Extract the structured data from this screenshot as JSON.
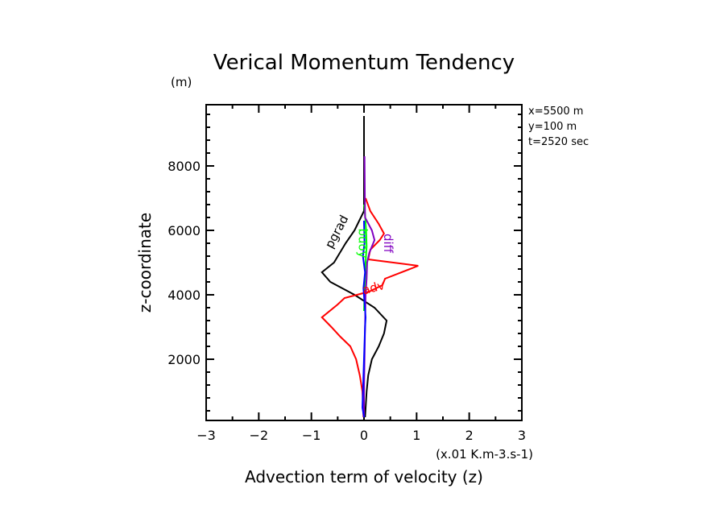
{
  "chart_data": {
    "type": "line",
    "title": "Verical Momentum Tendency",
    "ylabel": "z-coordinate",
    "yunit": "(m)",
    "xlabel": "Advection term of velocity (z)",
    "xunit": "(x.01 K.m-3.s-1)",
    "xlim": [
      -3,
      3
    ],
    "ylim": [
      100,
      9900
    ],
    "xticks": [
      -3,
      -2,
      -1,
      0,
      1,
      2,
      3
    ],
    "yticks": [
      2000,
      4000,
      6000,
      8000
    ],
    "info": [
      "x=5500 m",
      "y=100 m",
      "t=2520 sec"
    ],
    "series": [
      {
        "name": "pgrad",
        "color": "#000000",
        "points": [
          [
            0,
            9550
          ],
          [
            0,
            7000
          ],
          [
            0,
            6600
          ],
          [
            -0.18,
            6000
          ],
          [
            -0.35,
            5600
          ],
          [
            -0.57,
            5000
          ],
          [
            -0.8,
            4700
          ],
          [
            -0.64,
            4400
          ],
          [
            -0.18,
            4000
          ],
          [
            0.2,
            3600
          ],
          [
            0.43,
            3200
          ],
          [
            0.38,
            2800
          ],
          [
            0.28,
            2400
          ],
          [
            0.15,
            2000
          ],
          [
            0.08,
            1500
          ],
          [
            0.05,
            1000
          ],
          [
            0.02,
            200
          ]
        ]
      },
      {
        "name": "adv",
        "color": "#ff0000",
        "points": [
          [
            0.03,
            7000
          ],
          [
            0.12,
            6600
          ],
          [
            0.28,
            6200
          ],
          [
            0.38,
            5900
          ],
          [
            0.3,
            5700
          ],
          [
            0.12,
            5400
          ],
          [
            0.08,
            5100
          ],
          [
            1.03,
            4900
          ],
          [
            0.4,
            4500
          ],
          [
            0.35,
            4300
          ],
          [
            0.1,
            4100
          ],
          [
            -0.37,
            3900
          ],
          [
            -0.5,
            3700
          ],
          [
            -0.8,
            3300
          ],
          [
            -0.62,
            3000
          ],
          [
            -0.45,
            2700
          ],
          [
            -0.26,
            2400
          ],
          [
            -0.15,
            2000
          ],
          [
            -0.08,
            1500
          ],
          [
            -0.03,
            1000
          ],
          [
            -0.01,
            200
          ]
        ]
      },
      {
        "name": "buoy",
        "color": "#00ff00",
        "points": [
          [
            0,
            6800
          ],
          [
            0.02,
            6500
          ],
          [
            0.04,
            6000
          ],
          [
            0.05,
            5500
          ],
          [
            0.03,
            5000
          ],
          [
            0.02,
            4500
          ],
          [
            0.01,
            4000
          ],
          [
            0,
            3500
          ]
        ]
      },
      {
        "name": "diff",
        "color": "#8000c0",
        "points": [
          [
            0.01,
            8300
          ],
          [
            0.02,
            6400
          ],
          [
            0.15,
            6000
          ],
          [
            0.2,
            5700
          ],
          [
            0.1,
            5300
          ],
          [
            0.06,
            5000
          ],
          [
            0.05,
            4500
          ],
          [
            0.03,
            4000
          ],
          [
            0.02,
            3000
          ],
          [
            0.01,
            2000
          ],
          [
            0,
            1000
          ],
          [
            0,
            200
          ]
        ]
      },
      {
        "name": "",
        "color": "#0000ff",
        "points": [
          [
            0,
            6300
          ],
          [
            0.01,
            5600
          ],
          [
            -0.02,
            5200
          ],
          [
            0.02,
            4700
          ],
          [
            -0.01,
            4200
          ],
          [
            0.03,
            3300
          ],
          [
            0.02,
            3000
          ],
          [
            0,
            2000
          ],
          [
            -0.03,
            500
          ],
          [
            0,
            200
          ]
        ]
      }
    ]
  }
}
